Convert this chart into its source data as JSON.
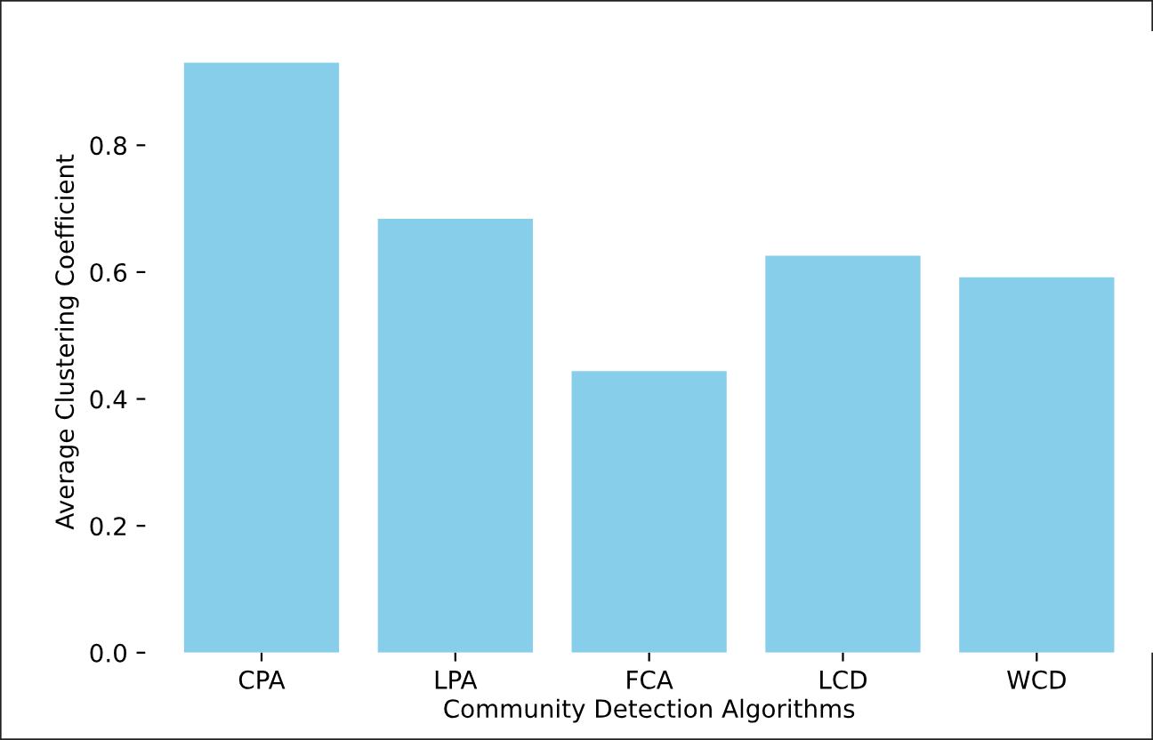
{
  "chart_data": {
    "type": "bar",
    "xlabel": "Community Detection Algorithms",
    "ylabel": "Average Clustering Coefficient",
    "categories": [
      "CPA",
      "LPA",
      "FCA",
      "LCD",
      "WCD"
    ],
    "values": [
      0.93,
      0.684,
      0.444,
      0.626,
      0.592
    ],
    "color": "#87ceeb",
    "ylim": [
      0,
      0.98
    ],
    "yticks": [
      {
        "value": 0,
        "label": "0.0"
      },
      0.2,
      0.4,
      0.6,
      0.8
    ],
    "grid": false,
    "legend": false
  }
}
